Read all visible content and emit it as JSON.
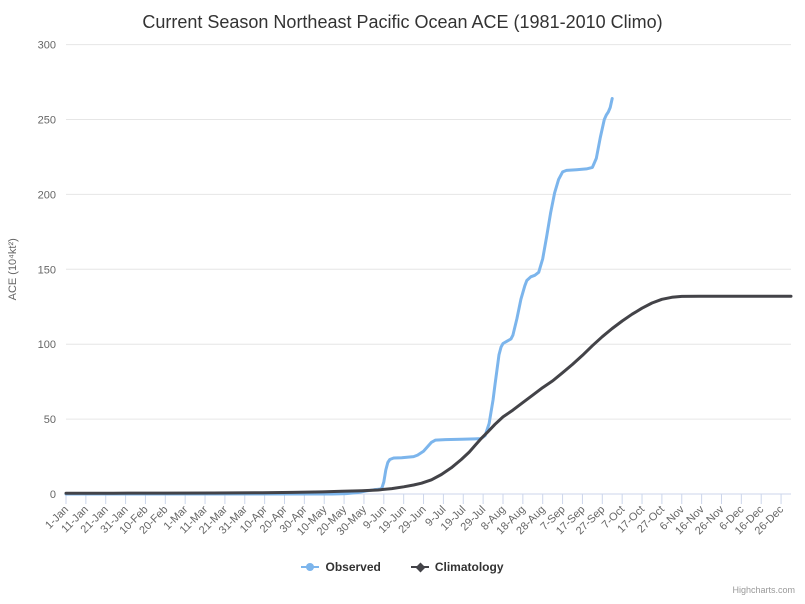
{
  "title": "Current Season Northeast Pacific Ocean ACE (1981-2010 Climo)",
  "credit": "Highcharts.com",
  "styles": {
    "background": "#ffffff",
    "title_color": "#333333",
    "grid_color": "#e6e6e6",
    "axis_color": "#ccd6eb",
    "label_color": "#666666",
    "legend_text_color": "#333333",
    "credit_color": "#999999"
  },
  "chart_data": {
    "type": "line",
    "title": "Current Season Northeast Pacific Ocean ACE (1981-2010 Climo)",
    "xlabel": "",
    "ylabel": "ACE (10⁴kt²)",
    "ylim": [
      0,
      300
    ],
    "y_ticks": [
      0,
      50,
      100,
      150,
      200,
      250,
      300
    ],
    "grid": "horizontal",
    "legend_position": "bottom-center",
    "x_range_days": [
      1,
      366
    ],
    "x_tick_interval_days": 10,
    "x_tick_labels": [
      "1-Jan",
      "11-Jan",
      "21-Jan",
      "31-Jan",
      "10-Feb",
      "20-Feb",
      "1-Mar",
      "11-Mar",
      "21-Mar",
      "31-Mar",
      "10-Apr",
      "20-Apr",
      "30-Apr",
      "10-May",
      "20-May",
      "30-May",
      "9-Jun",
      "19-Jun",
      "29-Jun",
      "9-Jul",
      "19-Jul",
      "29-Jul",
      "8-Aug",
      "18-Aug",
      "28-Aug",
      "7-Sep",
      "17-Sep",
      "27-Sep",
      "7-Oct",
      "17-Oct",
      "27-Oct",
      "6-Nov",
      "16-Nov",
      "26-Nov",
      "6-Dec",
      "16-Dec",
      "26-Dec"
    ],
    "series": [
      {
        "name": "Observed",
        "color": "#7cb5ec",
        "marker": "circle",
        "line_width": 3,
        "data": [
          [
            1,
            0
          ],
          [
            20,
            0
          ],
          [
            40,
            0
          ],
          [
            60,
            0
          ],
          [
            80,
            0
          ],
          [
            100,
            0
          ],
          [
            120,
            0
          ],
          [
            135,
            0
          ],
          [
            142,
            0.3
          ],
          [
            148,
            1
          ],
          [
            152,
            2
          ],
          [
            156,
            2.8
          ],
          [
            159,
            3.3
          ],
          [
            160,
            3.8
          ],
          [
            161,
            8
          ],
          [
            162,
            16
          ],
          [
            163,
            21
          ],
          [
            164,
            23
          ],
          [
            166,
            24
          ],
          [
            170,
            24.2
          ],
          [
            176,
            25
          ],
          [
            178,
            26
          ],
          [
            181,
            28.5
          ],
          [
            183,
            31.5
          ],
          [
            185,
            34.5
          ],
          [
            187,
            36
          ],
          [
            192,
            36.3
          ],
          [
            200,
            36.5
          ],
          [
            207,
            36.8
          ],
          [
            210,
            37
          ],
          [
            212,
            39
          ],
          [
            214,
            47
          ],
          [
            215,
            55
          ],
          [
            216,
            63
          ],
          [
            217,
            73
          ],
          [
            218,
            83
          ],
          [
            219,
            93
          ],
          [
            220,
            98
          ],
          [
            221,
            100.5
          ],
          [
            223,
            102
          ],
          [
            225,
            103.5
          ],
          [
            226,
            106
          ],
          [
            228,
            117
          ],
          [
            230,
            130
          ],
          [
            232,
            139
          ],
          [
            233,
            142.5
          ],
          [
            235,
            145
          ],
          [
            237,
            146
          ],
          [
            239,
            148
          ],
          [
            241,
            157
          ],
          [
            243,
            172
          ],
          [
            245,
            188
          ],
          [
            247,
            201
          ],
          [
            249,
            210
          ],
          [
            251,
            215
          ],
          [
            253,
            216
          ],
          [
            258,
            216.5
          ],
          [
            263,
            217
          ],
          [
            266,
            218
          ],
          [
            268,
            224
          ],
          [
            270,
            238
          ],
          [
            272,
            250
          ],
          [
            273,
            253
          ],
          [
            274,
            255
          ],
          [
            275,
            258
          ],
          [
            276,
            264
          ]
        ]
      },
      {
        "name": "Climatology",
        "color": "#434348",
        "marker": "diamond",
        "line_width": 3,
        "data": [
          [
            1,
            0.5
          ],
          [
            25,
            0.55
          ],
          [
            50,
            0.6
          ],
          [
            75,
            0.7
          ],
          [
            100,
            0.9
          ],
          [
            115,
            1.1
          ],
          [
            130,
            1.4
          ],
          [
            140,
            1.8
          ],
          [
            150,
            2.2
          ],
          [
            158,
            2.7
          ],
          [
            165,
            3.6
          ],
          [
            171,
            4.8
          ],
          [
            176,
            6
          ],
          [
            180,
            7.2
          ],
          [
            185,
            9.5
          ],
          [
            190,
            13
          ],
          [
            195,
            17.5
          ],
          [
            200,
            23
          ],
          [
            204,
            28
          ],
          [
            207,
            32.5
          ],
          [
            210,
            37
          ],
          [
            213,
            41
          ],
          [
            217,
            46.5
          ],
          [
            221,
            51.5
          ],
          [
            226,
            56
          ],
          [
            231,
            61
          ],
          [
            236,
            66
          ],
          [
            241,
            71
          ],
          [
            246,
            75.5
          ],
          [
            251,
            81
          ],
          [
            256,
            86.5
          ],
          [
            261,
            92.5
          ],
          [
            266,
            99
          ],
          [
            271,
            105
          ],
          [
            276,
            110.5
          ],
          [
            281,
            115.5
          ],
          [
            286,
            120
          ],
          [
            291,
            124
          ],
          [
            296,
            127.5
          ],
          [
            301,
            130
          ],
          [
            306,
            131.3
          ],
          [
            311,
            131.9
          ],
          [
            320,
            132
          ],
          [
            340,
            132
          ],
          [
            366,
            132
          ]
        ]
      }
    ]
  }
}
